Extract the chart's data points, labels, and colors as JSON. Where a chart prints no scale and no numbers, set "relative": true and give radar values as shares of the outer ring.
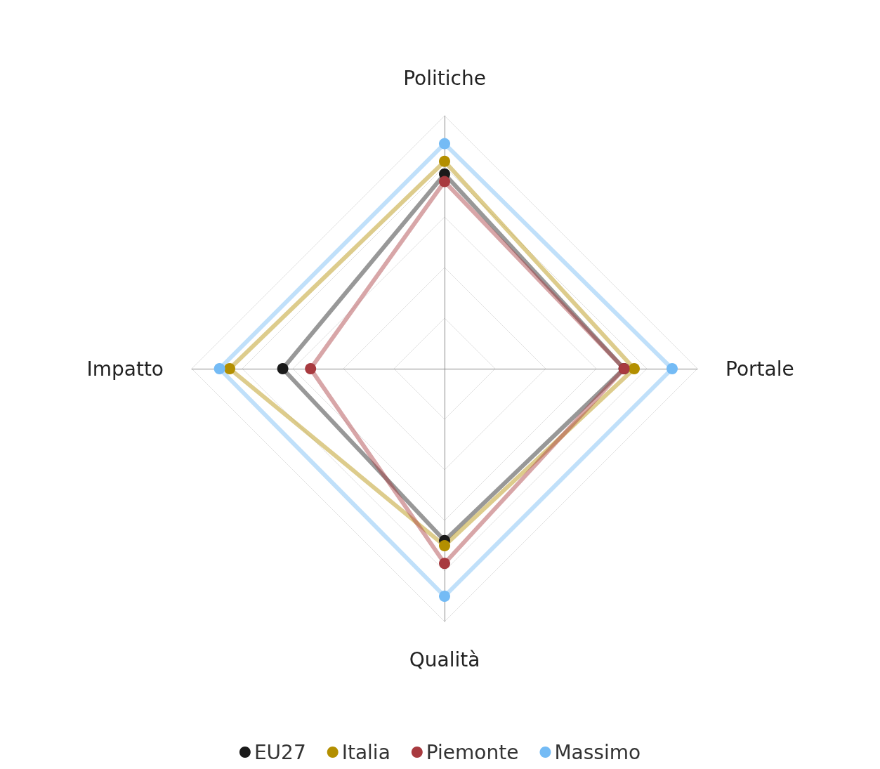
{
  "chart_data": {
    "type": "radar",
    "relative": true,
    "categories": [
      "Politiche",
      "Portale",
      "Qualità",
      "Impatto"
    ],
    "series": [
      {
        "name": "EU27",
        "color": "#1a1a1a",
        "values": [
          0.77,
          0.71,
          0.68,
          0.64
        ]
      },
      {
        "name": "Italia",
        "color": "#b38f00",
        "values": [
          0.82,
          0.75,
          0.7,
          0.85
        ]
      },
      {
        "name": "Piemonte",
        "color": "#a83a3f",
        "values": [
          0.74,
          0.71,
          0.77,
          0.53
        ]
      },
      {
        "name": "Massimo",
        "color": "#74bbf5",
        "values": [
          0.89,
          0.9,
          0.9,
          0.89
        ]
      }
    ],
    "marker": "circle",
    "legend": "bottom",
    "grid": true
  }
}
